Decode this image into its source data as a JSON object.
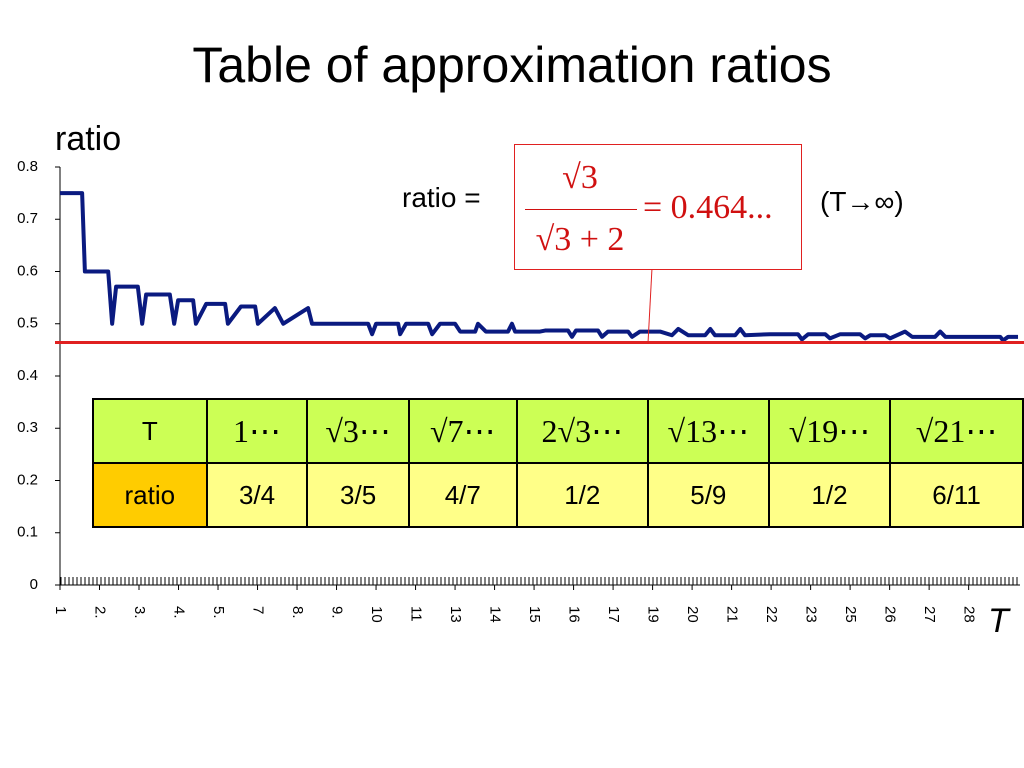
{
  "chart_data": {
    "type": "line",
    "title": "Table of approximation ratios",
    "y_label": "ratio",
    "x_label": "T",
    "xlim": [
      0,
      24.3
    ],
    "xticks": [
      {
        "value": 0,
        "label": "1"
      },
      {
        "value": 1,
        "label": "2."
      },
      {
        "value": 2,
        "label": "3."
      },
      {
        "value": 3,
        "label": "4."
      },
      {
        "value": 4,
        "label": "5."
      },
      {
        "value": 5,
        "label": "7"
      },
      {
        "value": 6,
        "label": "8."
      },
      {
        "value": 7,
        "label": "9."
      },
      {
        "value": 8,
        "label": "10"
      },
      {
        "value": 9,
        "label": "11"
      },
      {
        "value": 10,
        "label": "13"
      },
      {
        "value": 11,
        "label": "14"
      },
      {
        "value": 12,
        "label": "15"
      },
      {
        "value": 13,
        "label": "16"
      },
      {
        "value": 14,
        "label": "17"
      },
      {
        "value": 15,
        "label": "19"
      },
      {
        "value": 16,
        "label": "20"
      },
      {
        "value": 17,
        "label": "21"
      },
      {
        "value": 18,
        "label": "22"
      },
      {
        "value": 19,
        "label": "23"
      },
      {
        "value": 20,
        "label": "25"
      },
      {
        "value": 21,
        "label": "26"
      },
      {
        "value": 22,
        "label": "27"
      },
      {
        "value": 23,
        "label": "28"
      }
    ],
    "ylim": [
      0,
      0.8
    ],
    "yticks": [
      0,
      0.1,
      0.2,
      0.3,
      0.4,
      0.5,
      0.6,
      0.7,
      0.8
    ],
    "series": [
      {
        "color": "#0a1a80",
        "x": [
          0,
          0.56,
          0.63,
          1.22,
          1.32,
          1.42,
          1.97,
          2.08,
          2.18,
          2.78,
          2.89,
          2.99,
          3.37,
          3.44,
          3.7,
          4.18,
          4.25,
          4.58,
          4.94,
          5.01,
          5.44,
          5.65,
          6.28,
          6.38,
          7.8,
          7.9,
          8.0,
          8.56,
          8.61,
          8.76,
          9.32,
          9.42,
          9.62,
          10.0,
          10.13,
          10.51,
          10.58,
          10.78,
          11.34,
          11.44,
          11.52,
          12.15,
          12.28,
          12.86,
          12.96,
          13.06,
          13.62,
          13.72,
          13.87,
          14.38,
          14.48,
          14.68,
          15.19,
          15.49,
          15.65,
          15.9,
          16.33,
          16.46,
          16.58,
          17.09,
          17.22,
          17.34,
          17.97,
          18.68,
          18.78,
          18.94,
          19.37,
          19.49,
          19.75,
          20.25,
          20.38,
          20.51,
          20.89,
          21.01,
          21.39,
          21.57,
          22.15,
          22.28,
          22.41,
          23.8,
          23.87,
          24.0,
          24.25
        ],
        "values": [
          0.75,
          0.75,
          0.6,
          0.6,
          0.5,
          0.571,
          0.571,
          0.5,
          0.556,
          0.556,
          0.5,
          0.545,
          0.545,
          0.5,
          0.538,
          0.538,
          0.5,
          0.533,
          0.533,
          0.5,
          0.53,
          0.5,
          0.53,
          0.5,
          0.5,
          0.48,
          0.5,
          0.5,
          0.48,
          0.5,
          0.5,
          0.48,
          0.5,
          0.5,
          0.485,
          0.485,
          0.5,
          0.485,
          0.485,
          0.5,
          0.485,
          0.485,
          0.487,
          0.487,
          0.475,
          0.487,
          0.487,
          0.475,
          0.485,
          0.485,
          0.475,
          0.485,
          0.485,
          0.478,
          0.49,
          0.478,
          0.478,
          0.49,
          0.478,
          0.478,
          0.49,
          0.478,
          0.48,
          0.48,
          0.47,
          0.48,
          0.48,
          0.472,
          0.48,
          0.48,
          0.472,
          0.478,
          0.478,
          0.472,
          0.485,
          0.475,
          0.475,
          0.485,
          0.475,
          0.475,
          0.468,
          0.475,
          0.475
        ]
      }
    ],
    "reference_line": {
      "value": 0.464,
      "color": "#e02020"
    }
  },
  "annotation": {
    "lhs": "ratio =",
    "numerator": "√3",
    "denominator": "√3 + 2",
    "result": "= 0.464...",
    "limit": "(T→∞)"
  },
  "table": {
    "rows": [
      [
        "T",
        "1⋯",
        "√3⋯",
        "√7⋯",
        "2√3⋯",
        "√13⋯",
        "√19⋯",
        "√21⋯"
      ],
      [
        "ratio",
        "3/4",
        "3/5",
        "4/7",
        "1/2",
        "5/9",
        "1/2",
        "6/11"
      ]
    ]
  }
}
